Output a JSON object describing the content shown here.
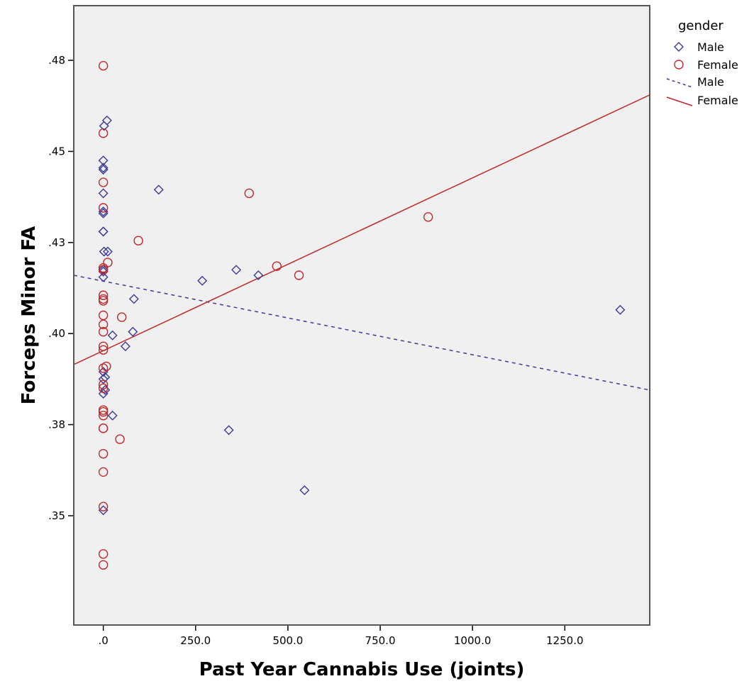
{
  "colors": {
    "male": "#3b3b98",
    "female": "#c0282b",
    "plot_bg": "#f0f0f0",
    "frame": "#555555"
  },
  "chart_data": {
    "type": "scatter",
    "xlabel": "Past Year Cannabis Use (joints)",
    "ylabel": "Forceps Minor FA",
    "xlim": [
      -80,
      1480
    ],
    "ylim": [
      0.325,
      0.495
    ],
    "x_ticks": [
      {
        "value": 0,
        "label": ".0"
      },
      {
        "value": 250,
        "label": "250.0"
      },
      {
        "value": 500,
        "label": "500.0"
      },
      {
        "value": 750,
        "label": "750.0"
      },
      {
        "value": 1000,
        "label": "1000.0"
      },
      {
        "value": 1250,
        "label": "1250.0"
      }
    ],
    "y_ticks": [
      {
        "value": 0.355,
        "label": ".35"
      },
      {
        "value": 0.38,
        "label": ".38"
      },
      {
        "value": 0.405,
        "label": ".40"
      },
      {
        "value": 0.43,
        "label": ".43"
      },
      {
        "value": 0.455,
        "label": ".45"
      },
      {
        "value": 0.48,
        "label": ".48"
      }
    ],
    "legend": {
      "title": "gender",
      "position": "right",
      "entries": [
        {
          "label": "Male",
          "kind": "marker",
          "series": "Male"
        },
        {
          "label": "Female",
          "kind": "marker",
          "series": "Female"
        },
        {
          "label": "Male",
          "kind": "line",
          "series": "Male"
        },
        {
          "label": "Female",
          "kind": "line",
          "series": "Female"
        }
      ]
    },
    "series": [
      {
        "name": "Male",
        "marker": "diamond",
        "x": [
          10,
          2,
          0,
          0,
          0,
          0,
          0,
          0,
          0,
          0,
          2,
          12,
          0,
          0,
          0,
          150,
          83,
          25,
          60,
          80,
          268,
          360,
          420,
          1400,
          0,
          5,
          0,
          0,
          5,
          25,
          340,
          545,
          0
        ],
        "y": [
          0.4635,
          0.462,
          0.4525,
          0.4505,
          0.45,
          0.4435,
          0.4385,
          0.438,
          0.433,
          0.433,
          0.4275,
          0.4275,
          0.4225,
          0.422,
          0.4205,
          0.4445,
          0.4145,
          0.4045,
          0.4015,
          0.4055,
          0.4195,
          0.4225,
          0.421,
          0.4115,
          0.3945,
          0.393,
          0.3925,
          0.3885,
          0.3895,
          0.3825,
          0.3785,
          0.362,
          0.3565
        ]
      },
      {
        "name": "Female",
        "marker": "circle",
        "x": [
          0,
          0,
          0,
          0,
          95,
          12,
          0,
          0,
          0,
          0,
          0,
          0,
          0,
          0,
          50,
          0,
          0,
          8,
          0,
          0,
          0,
          0,
          0,
          0,
          0,
          0,
          0,
          0,
          0,
          0,
          0,
          45,
          395,
          470,
          530,
          880
        ],
        "y": [
          0.4785,
          0.46,
          0.4465,
          0.4395,
          0.4305,
          0.4245,
          0.423,
          0.4225,
          0.4155,
          0.4145,
          0.414,
          0.41,
          0.4075,
          0.4055,
          0.4095,
          0.4015,
          0.4005,
          0.396,
          0.3955,
          0.391,
          0.39,
          0.384,
          0.3835,
          0.3825,
          0.379,
          0.379,
          0.372,
          0.367,
          0.3575,
          0.3445,
          0.3415,
          0.376,
          0.4435,
          0.4235,
          0.421,
          0.437
        ]
      }
    ],
    "fit_lines": [
      {
        "series": "Male",
        "style": "dashed",
        "x": [
          -80,
          1480
        ],
        "y": [
          0.421,
          0.3895
        ]
      },
      {
        "series": "Female",
        "style": "solid",
        "x": [
          -80,
          1480
        ],
        "y": [
          0.3965,
          0.4705
        ]
      }
    ]
  }
}
